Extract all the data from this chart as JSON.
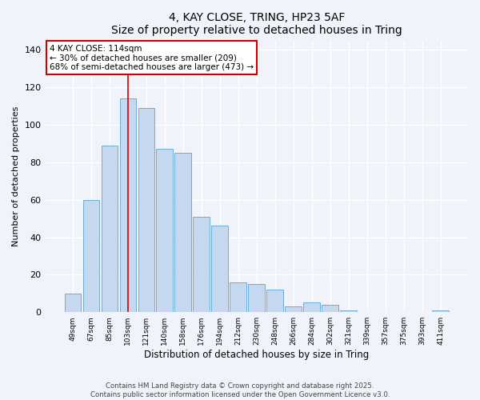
{
  "title1": "4, KAY CLOSE, TRING, HP23 5AF",
  "title2": "Size of property relative to detached houses in Tring",
  "xlabel": "Distribution of detached houses by size in Tring",
  "ylabel": "Number of detached properties",
  "categories": [
    "49sqm",
    "67sqm",
    "85sqm",
    "103sqm",
    "121sqm",
    "140sqm",
    "158sqm",
    "176sqm",
    "194sqm",
    "212sqm",
    "230sqm",
    "248sqm",
    "266sqm",
    "284sqm",
    "302sqm",
    "321sqm",
    "339sqm",
    "357sqm",
    "375sqm",
    "393sqm",
    "411sqm"
  ],
  "values": [
    10,
    60,
    89,
    114,
    109,
    87,
    85,
    51,
    46,
    16,
    15,
    12,
    3,
    5,
    4,
    1,
    0,
    0,
    0,
    0,
    1
  ],
  "bar_color": "#c5d8f0",
  "bar_edge_color": "#6aaed6",
  "highlight_index": 3,
  "highlight_line_color": "#cc0000",
  "annotation_title": "4 KAY CLOSE: 114sqm",
  "annotation_line1": "← 30% of detached houses are smaller (209)",
  "annotation_line2": "68% of semi-detached houses are larger (473) →",
  "annotation_box_color": "#ffffff",
  "annotation_box_edge": "#cc0000",
  "ylim": [
    0,
    145
  ],
  "yticks": [
    0,
    20,
    40,
    60,
    80,
    100,
    120,
    140
  ],
  "footer1": "Contains HM Land Registry data © Crown copyright and database right 2025.",
  "footer2": "Contains public sector information licensed under the Open Government Licence v3.0.",
  "bg_color": "#f0f4fa"
}
